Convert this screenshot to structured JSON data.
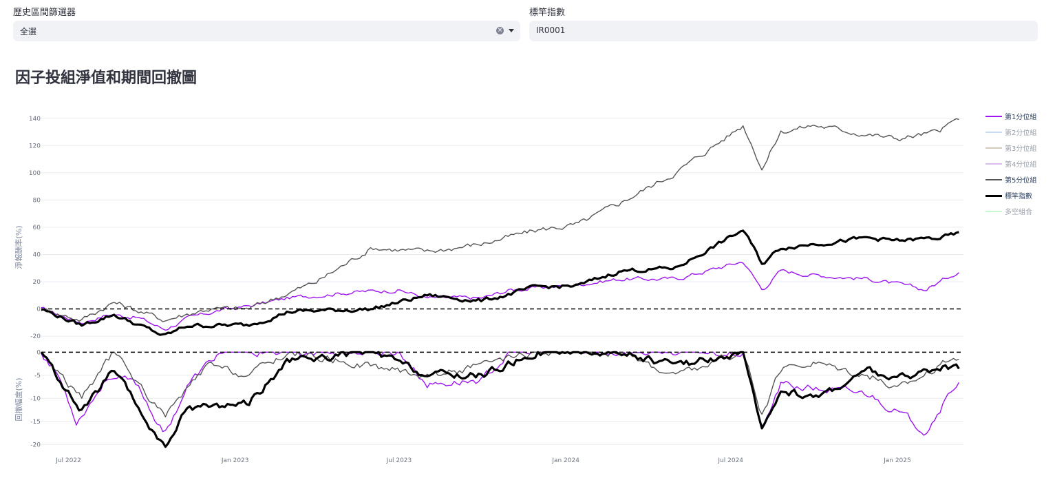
{
  "filter_left": {
    "label": "歷史區間篩選器",
    "value": "全選"
  },
  "filter_right": {
    "label": "標竿指數",
    "value": "IR0001"
  },
  "page_title": "因子投組淨值和期間回撤圖",
  "chart_data": {
    "type": "line",
    "x_ticks": [
      "Jul 2022",
      "Jan 2023",
      "Jul 2023",
      "Jan 2024",
      "Jul 2024",
      "Jan 2025"
    ],
    "x_range": [
      "2022-06-01",
      "2025-03-15"
    ],
    "top_panel": {
      "ylabel": "淨報酬率(%)",
      "y_ticks": [
        140,
        120,
        100,
        80,
        60,
        40,
        20,
        0,
        -20
      ],
      "ylim": [
        -24,
        150
      ],
      "reference_line": 0
    },
    "bottom_panel": {
      "ylabel": "回撤幅度(%)",
      "y_ticks": [
        0,
        -5,
        -10,
        -15,
        -20
      ],
      "ylim": [
        -21,
        0.5
      ],
      "reference_line": 0
    },
    "legend": [
      {
        "name": "第1分位組",
        "color": "#9d14f0",
        "visible": true
      },
      {
        "name": "第2分位組",
        "color": "#8fb3ec",
        "visible": false
      },
      {
        "name": "第3分位組",
        "color": "#a89a7c",
        "visible": false
      },
      {
        "name": "第4分位組",
        "color": "#b779e3",
        "visible": false
      },
      {
        "name": "第5分位組",
        "color": "#555555",
        "visible": true
      },
      {
        "name": "標竿指數",
        "color": "#000000",
        "visible": true
      },
      {
        "name": "多空組合",
        "color": "#8ff0a4",
        "visible": false
      }
    ],
    "series": [
      {
        "name": "第1分位組",
        "color": "#9d14f0",
        "keypoints": [
          [
            "2022-06-01",
            0
          ],
          [
            "2022-06-20",
            -4
          ],
          [
            "2022-07-15",
            -10
          ],
          [
            "2022-08-15",
            -4
          ],
          [
            "2022-09-15",
            -6
          ],
          [
            "2022-10-15",
            -15
          ],
          [
            "2022-11-10",
            -7
          ],
          [
            "2022-12-15",
            -1
          ],
          [
            "2023-01-15",
            2
          ],
          [
            "2023-03-01",
            8
          ],
          [
            "2023-05-01",
            12
          ],
          [
            "2023-07-01",
            14
          ],
          [
            "2023-08-01",
            8
          ],
          [
            "2023-10-01",
            8
          ],
          [
            "2023-11-01",
            14
          ],
          [
            "2024-01-01",
            17
          ],
          [
            "2024-03-01",
            22
          ],
          [
            "2024-05-01",
            22
          ],
          [
            "2024-07-15",
            35
          ],
          [
            "2024-08-05",
            14
          ],
          [
            "2024-08-25",
            28
          ],
          [
            "2024-10-01",
            25
          ],
          [
            "2024-12-01",
            22
          ],
          [
            "2025-01-01",
            18
          ],
          [
            "2025-02-01",
            14
          ],
          [
            "2025-03-10",
            28
          ]
        ],
        "drawdown": [
          [
            "2022-06-01",
            0
          ],
          [
            "2022-06-20",
            -5
          ],
          [
            "2022-07-10",
            -15
          ],
          [
            "2022-08-15",
            -5
          ],
          [
            "2022-09-15",
            -7
          ],
          [
            "2022-10-15",
            -18
          ],
          [
            "2022-11-10",
            -7
          ],
          [
            "2022-12-15",
            0
          ],
          [
            "2023-03-01",
            0
          ],
          [
            "2023-07-01",
            0
          ],
          [
            "2023-08-01",
            -7
          ],
          [
            "2023-10-01",
            -6
          ],
          [
            "2023-11-01",
            0
          ],
          [
            "2024-01-01",
            0
          ],
          [
            "2024-03-01",
            0
          ],
          [
            "2024-07-15",
            0
          ],
          [
            "2024-08-05",
            -17
          ],
          [
            "2024-08-25",
            -7
          ],
          [
            "2024-10-01",
            -8
          ],
          [
            "2024-12-01",
            -9
          ],
          [
            "2025-02-01",
            -17
          ],
          [
            "2025-03-10",
            -6
          ]
        ]
      },
      {
        "name": "第5分位組",
        "color": "#555555",
        "keypoints": [
          [
            "2022-06-01",
            0
          ],
          [
            "2022-07-15",
            -8
          ],
          [
            "2022-08-20",
            5
          ],
          [
            "2022-10-15",
            -8
          ],
          [
            "2022-12-01",
            0
          ],
          [
            "2023-01-15",
            0
          ],
          [
            "2023-04-01",
            20
          ],
          [
            "2023-06-01",
            45
          ],
          [
            "2023-08-01",
            42
          ],
          [
            "2023-10-01",
            48
          ],
          [
            "2023-12-01",
            58
          ],
          [
            "2024-01-15",
            62
          ],
          [
            "2024-03-01",
            78
          ],
          [
            "2024-05-01",
            100
          ],
          [
            "2024-07-15",
            135
          ],
          [
            "2024-08-05",
            103
          ],
          [
            "2024-08-25",
            130
          ],
          [
            "2024-10-01",
            135
          ],
          [
            "2024-12-01",
            128
          ],
          [
            "2025-01-01",
            125
          ],
          [
            "2025-02-15",
            130
          ],
          [
            "2025-03-10",
            140
          ]
        ],
        "drawdown": [
          [
            "2022-06-01",
            0
          ],
          [
            "2022-07-15",
            -10
          ],
          [
            "2022-08-20",
            0
          ],
          [
            "2022-10-15",
            -14
          ],
          [
            "2022-12-01",
            -3
          ],
          [
            "2023-01-15",
            -5
          ],
          [
            "2023-03-01",
            0
          ],
          [
            "2023-08-01",
            -5
          ],
          [
            "2023-10-01",
            -3
          ],
          [
            "2023-12-01",
            0
          ],
          [
            "2024-03-01",
            0
          ],
          [
            "2024-05-01",
            -5
          ],
          [
            "2024-07-15",
            0
          ],
          [
            "2024-08-05",
            -14
          ],
          [
            "2024-08-25",
            -4
          ],
          [
            "2024-10-01",
            -2
          ],
          [
            "2024-12-01",
            -5
          ],
          [
            "2025-01-01",
            -8
          ],
          [
            "2025-02-15",
            -3
          ],
          [
            "2025-03-10",
            -1
          ]
        ]
      },
      {
        "name": "標竿指數",
        "color": "#000000",
        "keypoints": [
          [
            "2022-06-01",
            0
          ],
          [
            "2022-07-15",
            -12
          ],
          [
            "2022-08-20",
            -4
          ],
          [
            "2022-10-15",
            -20
          ],
          [
            "2022-11-10",
            -12
          ],
          [
            "2023-01-15",
            -12
          ],
          [
            "2023-03-01",
            -2
          ],
          [
            "2023-06-01",
            0
          ],
          [
            "2023-08-01",
            10
          ],
          [
            "2023-10-01",
            6
          ],
          [
            "2023-12-01",
            16
          ],
          [
            "2024-01-15",
            17
          ],
          [
            "2024-03-01",
            28
          ],
          [
            "2024-05-01",
            30
          ],
          [
            "2024-07-15",
            58
          ],
          [
            "2024-08-05",
            33
          ],
          [
            "2024-08-25",
            45
          ],
          [
            "2024-10-01",
            48
          ],
          [
            "2024-12-01",
            52
          ],
          [
            "2025-01-01",
            50
          ],
          [
            "2025-02-15",
            52
          ],
          [
            "2025-03-10",
            55
          ]
        ],
        "drawdown": [
          [
            "2022-06-01",
            0
          ],
          [
            "2022-07-15",
            -13
          ],
          [
            "2022-08-20",
            -4
          ],
          [
            "2022-10-15",
            -21
          ],
          [
            "2022-11-10",
            -12
          ],
          [
            "2023-01-15",
            -11
          ],
          [
            "2023-03-01",
            -2
          ],
          [
            "2023-06-01",
            0
          ],
          [
            "2023-08-01",
            -5
          ],
          [
            "2023-10-01",
            -5
          ],
          [
            "2023-12-01",
            0
          ],
          [
            "2024-03-01",
            0
          ],
          [
            "2024-05-01",
            -3
          ],
          [
            "2024-07-15",
            0
          ],
          [
            "2024-08-05",
            -18
          ],
          [
            "2024-08-25",
            -8
          ],
          [
            "2024-10-01",
            -10
          ],
          [
            "2024-12-01",
            -4
          ],
          [
            "2025-01-01",
            -6
          ],
          [
            "2025-02-15",
            -3
          ],
          [
            "2025-03-10",
            -4
          ]
        ]
      }
    ]
  }
}
